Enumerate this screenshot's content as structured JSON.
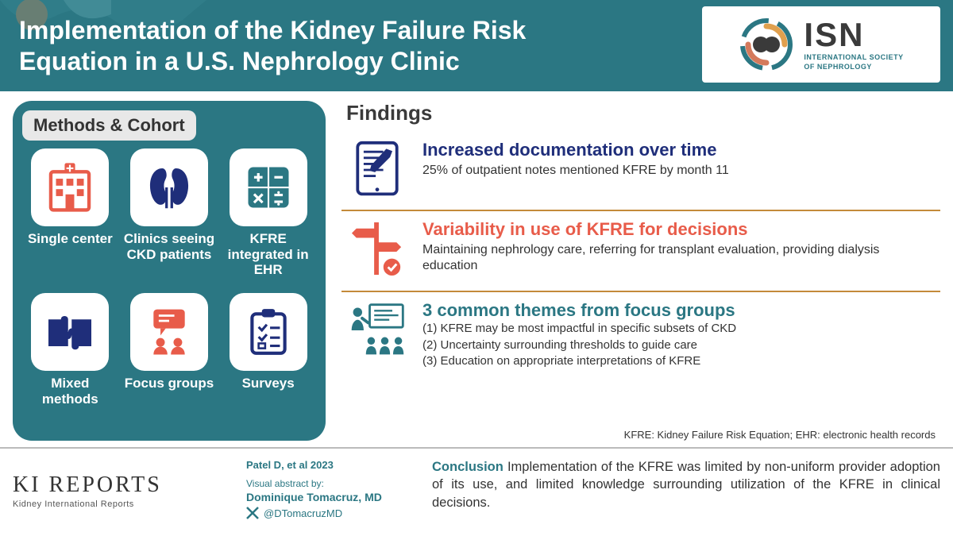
{
  "colors": {
    "teal": "#2b7783",
    "navy": "#1f2e7a",
    "coral": "#e85c4a",
    "gold_divider": "#c48a3a",
    "methods_bg": "#2b7783",
    "tile_bg": "#ffffff"
  },
  "header": {
    "title": "Implementation of the Kidney Failure Risk Equation in a U.S. Nephrology Clinic",
    "logo_text": "ISN",
    "logo_sub1": "INTERNATIONAL SOCIETY",
    "logo_sub2": "OF NEPHROLOGY"
  },
  "methods": {
    "title": "Methods & Cohort",
    "items": [
      {
        "label": "Single center",
        "icon": "hospital"
      },
      {
        "label": "Clinics seeing CKD patients",
        "icon": "kidneys"
      },
      {
        "label": "KFRE integrated in EHR",
        "icon": "calculator"
      },
      {
        "label": "Mixed methods",
        "icon": "puzzle"
      },
      {
        "label": "Focus groups",
        "icon": "focus-group"
      },
      {
        "label": "Surveys",
        "icon": "clipboard"
      }
    ]
  },
  "findings": {
    "title": "Findings",
    "items": [
      {
        "headline": "Increased documentation over time",
        "headline_color": "#1f2e7a",
        "sub": "25% of outpatient notes mentioned KFRE by month 11",
        "icon": "tablet",
        "icon_color": "#1f2e7a"
      },
      {
        "headline": "Variability in use of KFRE for decisions",
        "headline_color": "#e85c4a",
        "sub": "Maintaining nephrology care, referring for transplant evaluation, providing dialysis education",
        "icon": "signpost",
        "icon_color": "#e85c4a"
      },
      {
        "headline": "3 common themes from focus groups",
        "headline_color": "#2b7783",
        "list": [
          "(1)  KFRE may be most impactful in specific subsets of CKD",
          "(2)  Uncertainty surrounding thresholds to guide care",
          "(3)  Education on appropriate interpretations of KFRE"
        ],
        "icon": "presenter",
        "icon_color": "#2b7783"
      }
    ],
    "footnote": "KFRE: Kidney Failure Risk Equation; EHR: electronic health records"
  },
  "footer": {
    "journal_name": "KI REPORTS",
    "journal_sub": "Kidney International Reports",
    "citation": "Patel D, et al 2023",
    "abstract_by_label": "Visual abstract by:",
    "author": "Dominique Tomacruz, MD",
    "handle": "@DTomacruzMD",
    "conclusion_lead": "Conclusion",
    "conclusion": " Implementation of the KFRE was limited by non-uniform provider adoption of its use, and limited knowledge surrounding utilization of the KFRE in clinical decisions."
  }
}
